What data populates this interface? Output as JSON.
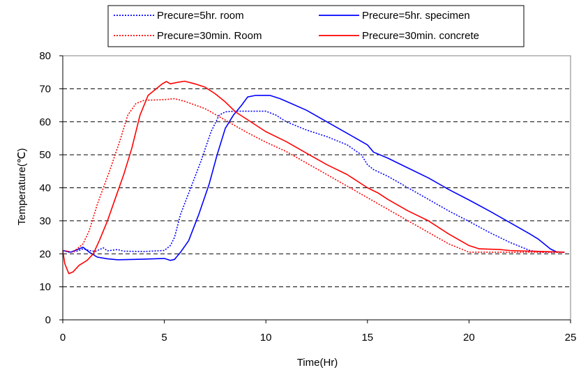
{
  "chart_data": {
    "type": "line",
    "title": "",
    "xlabel": "Time(Hr)",
    "ylabel": "Temperature(℃)",
    "xlim": [
      0,
      25
    ],
    "ylim": [
      0,
      80
    ],
    "xticks": [
      "0",
      "5",
      "10",
      "15",
      "20",
      "25"
    ],
    "yticks": [
      "0",
      "10",
      "20",
      "30",
      "40",
      "50",
      "60",
      "70",
      "80"
    ],
    "grid": "horizontal dashed",
    "legend_position": "top",
    "series": [
      {
        "name": "Precure=5hr. room",
        "color": "#0000ff",
        "style": "dotted",
        "points": [
          [
            0,
            21
          ],
          [
            0.3,
            20.5
          ],
          [
            0.7,
            20.8
          ],
          [
            1,
            21.5
          ],
          [
            1.3,
            21
          ],
          [
            1.6,
            20.7
          ],
          [
            2,
            21.8
          ],
          [
            2.2,
            20.9
          ],
          [
            2.7,
            21.3
          ],
          [
            3,
            20.8
          ],
          [
            4,
            20.7
          ],
          [
            5,
            21
          ],
          [
            5.3,
            22.5
          ],
          [
            5.5,
            25
          ],
          [
            5.8,
            32
          ],
          [
            6.3,
            40
          ],
          [
            6.8,
            48
          ],
          [
            7.3,
            57
          ],
          [
            7.7,
            62
          ],
          [
            8,
            63
          ],
          [
            8.5,
            63.2
          ],
          [
            10,
            63.2
          ],
          [
            10.5,
            62
          ],
          [
            11,
            60
          ],
          [
            12,
            57.5
          ],
          [
            13,
            55.5
          ],
          [
            14,
            53
          ],
          [
            14.7,
            50
          ],
          [
            15,
            47
          ],
          [
            15.3,
            45.5
          ],
          [
            16,
            43.5
          ],
          [
            17,
            40
          ],
          [
            18,
            36.5
          ],
          [
            19,
            33
          ],
          [
            20,
            29.8
          ],
          [
            21,
            26.5
          ],
          [
            22,
            23.5
          ],
          [
            23,
            21
          ],
          [
            23.5,
            20.5
          ],
          [
            24.7,
            20.5
          ]
        ]
      },
      {
        "name": "Precure=5hr. specimen",
        "color": "#0000ff",
        "style": "solid",
        "points": [
          [
            0,
            21
          ],
          [
            0.4,
            20.5
          ],
          [
            0.8,
            21.5
          ],
          [
            1,
            22
          ],
          [
            1.3,
            20.5
          ],
          [
            1.7,
            19
          ],
          [
            2.2,
            18.5
          ],
          [
            2.7,
            18.2
          ],
          [
            3.5,
            18.3
          ],
          [
            4.5,
            18.5
          ],
          [
            5,
            18.6
          ],
          [
            5.3,
            18
          ],
          [
            5.5,
            18.3
          ],
          [
            5.8,
            20.5
          ],
          [
            6.2,
            24
          ],
          [
            6.7,
            32
          ],
          [
            7.2,
            41
          ],
          [
            7.6,
            50
          ],
          [
            8,
            58
          ],
          [
            8.4,
            62
          ],
          [
            8.8,
            65
          ],
          [
            9.1,
            67.5
          ],
          [
            9.5,
            68
          ],
          [
            10.2,
            68
          ],
          [
            10.7,
            67
          ],
          [
            11,
            66.2
          ],
          [
            12,
            63.5
          ],
          [
            13,
            60
          ],
          [
            14,
            56.5
          ],
          [
            15,
            53
          ],
          [
            15.3,
            50.8
          ],
          [
            16,
            49
          ],
          [
            17,
            46
          ],
          [
            18,
            43
          ],
          [
            19,
            39.5
          ],
          [
            20,
            36.3
          ],
          [
            21,
            33
          ],
          [
            22,
            29.5
          ],
          [
            23,
            26
          ],
          [
            23.4,
            24.5
          ],
          [
            24,
            21.5
          ],
          [
            24.3,
            20.6
          ],
          [
            24.7,
            20.5
          ]
        ]
      },
      {
        "name": "Precure=30min. Room",
        "color": "#ff0000",
        "style": "dotted",
        "points": [
          [
            0,
            21
          ],
          [
            0.5,
            20.5
          ],
          [
            1,
            23
          ],
          [
            1.3,
            27
          ],
          [
            1.7,
            35
          ],
          [
            2,
            40
          ],
          [
            2.3,
            45
          ],
          [
            2.8,
            54
          ],
          [
            3.2,
            62
          ],
          [
            3.6,
            65.5
          ],
          [
            4,
            66.5
          ],
          [
            5,
            66.7
          ],
          [
            5.5,
            67
          ],
          [
            6,
            66.2
          ],
          [
            7,
            64
          ],
          [
            8,
            60.5
          ],
          [
            9,
            57
          ],
          [
            10,
            53.8
          ],
          [
            11,
            51
          ],
          [
            12,
            47.5
          ],
          [
            13,
            44
          ],
          [
            14,
            40.5
          ],
          [
            15,
            37
          ],
          [
            16,
            33.5
          ],
          [
            17,
            30
          ],
          [
            18,
            26.5
          ],
          [
            19,
            23
          ],
          [
            20,
            20.5
          ],
          [
            21,
            20.5
          ],
          [
            24.7,
            20.5
          ]
        ]
      },
      {
        "name": "Precure=30min. concrete",
        "color": "#ff0000",
        "style": "solid",
        "points": [
          [
            0,
            21
          ],
          [
            0.1,
            17
          ],
          [
            0.3,
            14
          ],
          [
            0.5,
            14.5
          ],
          [
            0.8,
            16.5
          ],
          [
            1.2,
            18
          ],
          [
            1.5,
            20
          ],
          [
            1.8,
            24
          ],
          [
            2.2,
            30
          ],
          [
            2.6,
            37
          ],
          [
            3,
            44
          ],
          [
            3.4,
            52
          ],
          [
            3.8,
            62
          ],
          [
            4.2,
            68
          ],
          [
            4.6,
            70
          ],
          [
            4.9,
            71.5
          ],
          [
            5.1,
            72.2
          ],
          [
            5.3,
            71.5
          ],
          [
            5.7,
            72
          ],
          [
            6,
            72.3
          ],
          [
            6.5,
            71.5
          ],
          [
            7,
            70.5
          ],
          [
            7.5,
            68.5
          ],
          [
            8,
            66
          ],
          [
            8.5,
            63
          ],
          [
            9,
            61
          ],
          [
            10,
            57
          ],
          [
            11,
            54
          ],
          [
            12,
            50.5
          ],
          [
            13,
            47
          ],
          [
            14,
            44
          ],
          [
            15,
            40
          ],
          [
            15.5,
            38.5
          ],
          [
            16,
            36.5
          ],
          [
            17,
            33
          ],
          [
            18,
            30
          ],
          [
            19,
            26
          ],
          [
            20,
            22.5
          ],
          [
            20.5,
            21.5
          ],
          [
            21.5,
            21.3
          ],
          [
            22,
            21
          ],
          [
            24.7,
            20.5
          ]
        ]
      }
    ]
  }
}
